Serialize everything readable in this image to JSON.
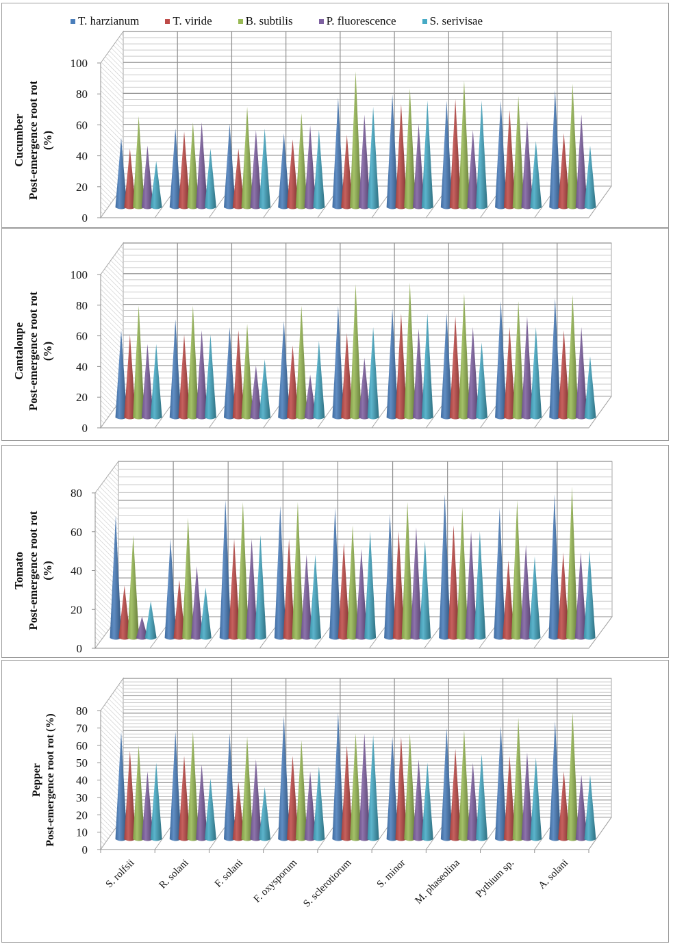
{
  "chart_data": [
    {
      "type": "bar",
      "style": "3d-cone",
      "title": "",
      "crop": "Cucumber",
      "ylabel_lines": [
        "Cucumber",
        "Post-emergence root rot",
        "(%)"
      ],
      "xlabel": "",
      "ylim": [
        0,
        100
      ],
      "yticks": [
        0,
        20,
        40,
        60,
        80,
        100
      ],
      "grid": true,
      "categories": [
        "S. rolfsii",
        "R. solani",
        "F. solani",
        "F. oxysporum",
        "S. sclerotiorum",
        "S. minor",
        "M. phaseolina",
        "Pythium sp.",
        "A. solani"
      ],
      "series": [
        {
          "name": "T. harzianum",
          "values": [
            45,
            51,
            54,
            48,
            71,
            73,
            69,
            69,
            76
          ]
        },
        {
          "name": "T. viride",
          "values": [
            38,
            49,
            38,
            44,
            47,
            67,
            70,
            63,
            48
          ]
        },
        {
          "name": "B. subtilis",
          "values": [
            59,
            55,
            65,
            61,
            88,
            77,
            82,
            72,
            80
          ]
        },
        {
          "name": "P. fluorescence",
          "values": [
            40,
            55,
            50,
            53,
            60,
            54,
            50,
            56,
            60
          ]
        },
        {
          "name": "S. serivisae",
          "values": [
            30,
            38,
            51,
            50,
            65,
            69,
            69,
            43,
            40
          ]
        }
      ]
    },
    {
      "type": "bar",
      "style": "3d-cone",
      "title": "",
      "crop": "Cantaloupe",
      "ylabel_lines": [
        "Cantaloupe",
        "Post-emergence root rot",
        "(%)"
      ],
      "xlabel": "",
      "ylim": [
        0,
        100
      ],
      "yticks": [
        0,
        20,
        40,
        60,
        80,
        100
      ],
      "grid": true,
      "categories": [
        "S. rolfsii",
        "R. solani",
        "F. solani",
        "F. oxysporum",
        "S. sclerotiorum",
        "S. minor",
        "M. phaseolina",
        "Pythium sp.",
        "A. solani"
      ],
      "series": [
        {
          "name": "T. harzianum",
          "values": [
            57,
            64,
            59,
            63,
            73,
            71,
            68,
            76,
            78
          ]
        },
        {
          "name": "T. viride",
          "values": [
            54,
            54,
            57,
            47,
            55,
            68,
            66,
            59,
            57
          ]
        },
        {
          "name": "B. subtilis",
          "values": [
            73,
            73,
            61,
            73,
            87,
            88,
            81,
            76,
            80
          ]
        },
        {
          "name": "P. fluorescence",
          "values": [
            48,
            57,
            34,
            28,
            39,
            58,
            59,
            66,
            59
          ]
        },
        {
          "name": "S. serivisae",
          "values": [
            48,
            54,
            38,
            50,
            59,
            68,
            49,
            59,
            40
          ]
        }
      ]
    },
    {
      "type": "bar",
      "style": "3d-cone",
      "title": "",
      "crop": "Tomato",
      "ylabel_lines": [
        "Tomato",
        "Post-emergence root rot",
        "(%)"
      ],
      "xlabel": "",
      "ylim": [
        0,
        80
      ],
      "yticks": [
        0,
        20,
        40,
        60,
        80
      ],
      "grid": true,
      "categories": [
        "S. rolfsii",
        "R. solani",
        "F. solani",
        "F. oxysporum",
        "S. sclerotiorum",
        "S. minor",
        "M. phaseolina",
        "Pythium sp.",
        "A. solani"
      ],
      "series": [
        {
          "name": "T. harzianum",
          "values": [
            63,
            51,
            71,
            68,
            67,
            64,
            74,
            67,
            74
          ]
        },
        {
          "name": "T. viride",
          "values": [
            27,
            30,
            51,
            51,
            49,
            55,
            58,
            40,
            44
          ]
        },
        {
          "name": "B. subtilis",
          "values": [
            53,
            62,
            70,
            70,
            58,
            70,
            67,
            71,
            78
          ]
        },
        {
          "name": "P. fluorescence",
          "values": [
            11,
            37,
            51,
            43,
            46,
            57,
            55,
            48,
            44
          ]
        },
        {
          "name": "S. serivisae",
          "values": [
            19,
            26,
            53,
            43,
            55,
            50,
            55,
            42,
            45
          ]
        }
      ]
    },
    {
      "type": "bar",
      "style": "3d-cone",
      "title": "",
      "crop": "Pepper",
      "ylabel_lines": [
        "Pepper",
        "Post-emergence root rot (%)"
      ],
      "xlabel": "",
      "ylim": [
        0,
        80
      ],
      "yticks": [
        0,
        10,
        20,
        30,
        40,
        50,
        60,
        70,
        80
      ],
      "grid": true,
      "categories": [
        "S. rolfsii",
        "R. solani",
        "F. solani",
        "F. oxysporum",
        "S. sclerotiorum",
        "S. minor",
        "M. phaseolina",
        "Pythium sp.",
        "A. solani"
      ],
      "series": [
        {
          "name": "T. harzianum",
          "values": [
            62,
            62,
            61,
            71,
            73,
            59,
            64,
            65,
            68
          ]
        },
        {
          "name": "T. viride",
          "values": [
            51,
            48,
            33,
            48,
            54,
            59,
            52,
            48,
            39
          ]
        },
        {
          "name": "B. subtilis",
          "values": [
            54,
            62,
            59,
            57,
            61,
            61,
            63,
            70,
            73
          ]
        },
        {
          "name": "P. fluorescence",
          "values": [
            39,
            43,
            46,
            39,
            61,
            46,
            44,
            50,
            37
          ]
        },
        {
          "name": "S. serivisae",
          "values": [
            44,
            35,
            30,
            42,
            60,
            44,
            49,
            47,
            37
          ]
        }
      ]
    }
  ],
  "legend": {
    "placement": "top",
    "items": [
      {
        "label": "T. harzianum",
        "color": "#4a7ebb"
      },
      {
        "label": "T. viride",
        "color": "#be4b48"
      },
      {
        "label": "B. subtilis",
        "color": "#98b954"
      },
      {
        "label": "P. fluorescence",
        "color": "#7d60a0"
      },
      {
        "label": "S. serivisae",
        "color": "#46aac5"
      }
    ]
  },
  "colors": {
    "gridline": "#a6a6a6",
    "axis_text": "#111111",
    "panel_border": "#9a9a9a"
  }
}
